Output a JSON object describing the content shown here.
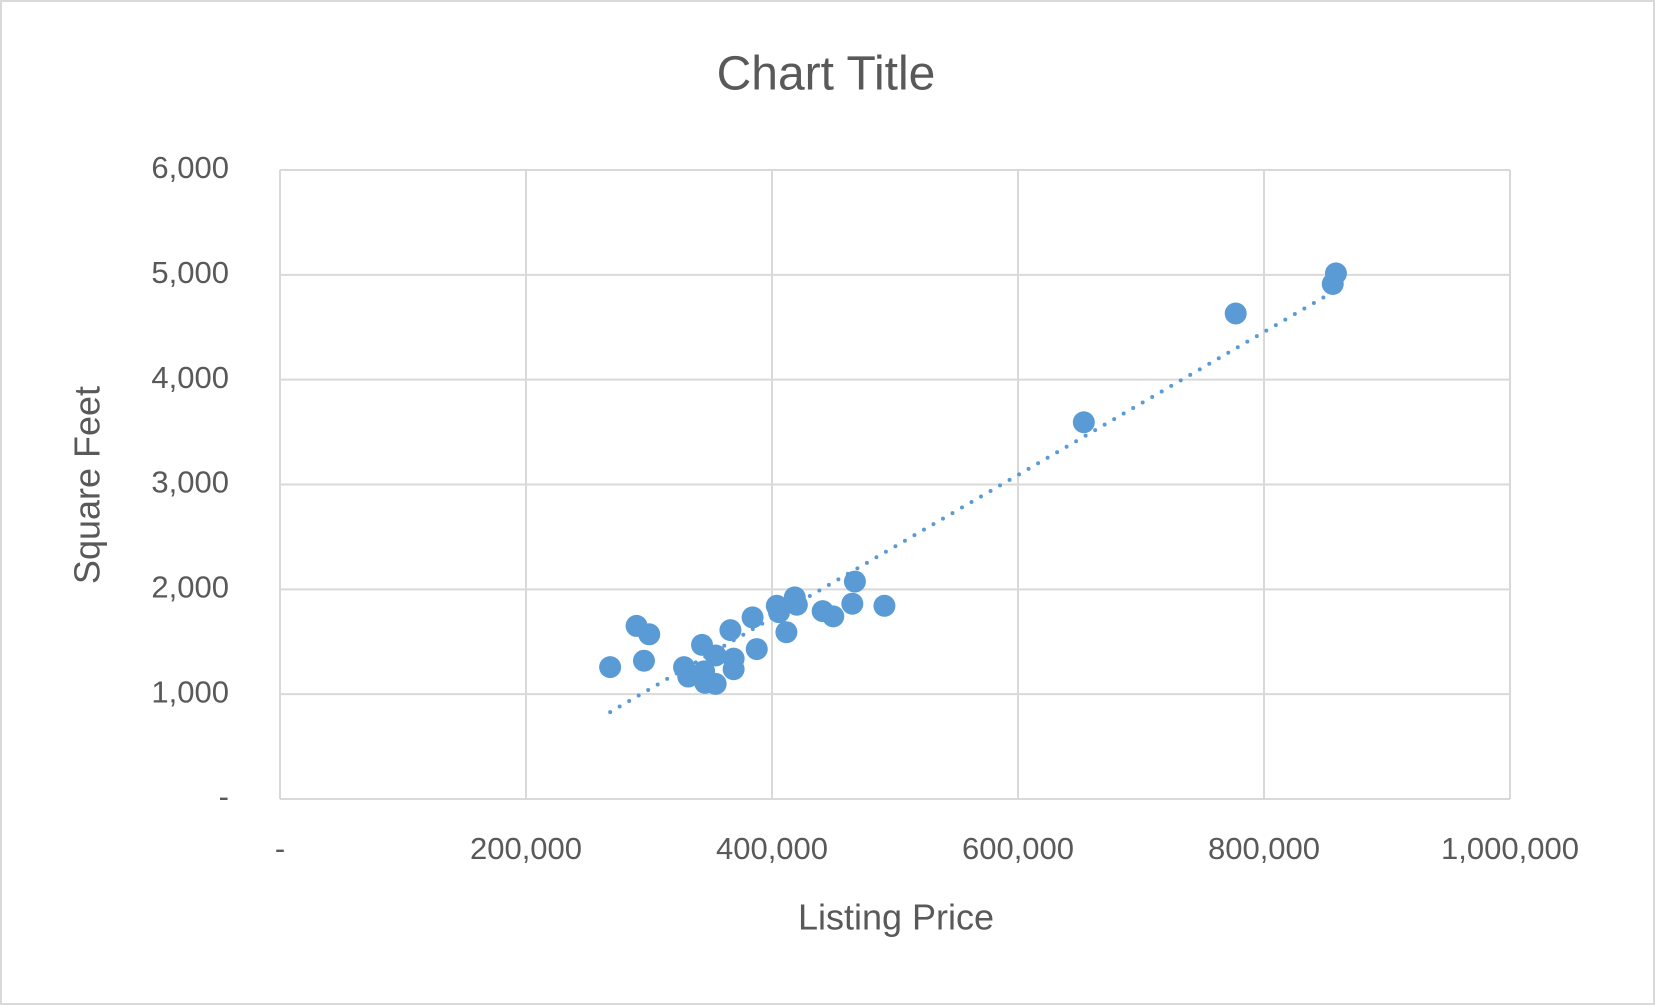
{
  "chart_data": {
    "type": "scatter",
    "title": "Chart Title",
    "x_label": "Listing Price",
    "y_label": "Square Feet",
    "series": [
      {
        "color": "#5b9bd5",
        "x": [
          268400,
          289900,
          300200,
          295900,
          328500,
          331900,
          343100,
          344800,
          345600,
          354200,
          354200,
          366200,
          368800,
          368800,
          384200,
          387600,
          403900,
          405700,
          411700,
          418500,
          420200,
          441200,
          449800,
          465300,
          467400,
          491400,
          653500,
          777000,
          855900,
          858500
        ],
        "values": [
          1258,
          1651,
          1571,
          1319,
          1258,
          1168,
          1470,
          1218,
          1108,
          1369,
          1098,
          1611,
          1339,
          1238,
          1732,
          1430,
          1843,
          1782,
          1591,
          1923,
          1853,
          1792,
          1742,
          1863,
          2074,
          1843,
          3594,
          4631,
          4913,
          5014
        ]
      }
    ],
    "trendline": "linear",
    "xlim": [
      0,
      1000000
    ],
    "ylim": [
      0,
      6000
    ],
    "xticks": [
      {
        "value": 0,
        "label": "-"
      },
      {
        "value": 200000,
        "label": "200,000"
      },
      {
        "value": 400000,
        "label": "400,000"
      },
      {
        "value": 600000,
        "label": "600,000"
      },
      {
        "value": 800000,
        "label": "800,000"
      },
      {
        "value": 1000000,
        "label": "1,000,000"
      }
    ],
    "yticks": [
      {
        "value": 0,
        "label": "-"
      },
      {
        "value": 1000,
        "label": "1,000"
      },
      {
        "value": 2000,
        "label": "2,000"
      },
      {
        "value": 3000,
        "label": "3,000"
      },
      {
        "value": 4000,
        "label": "4,000"
      },
      {
        "value": 5000,
        "label": "5,000"
      },
      {
        "value": 6000,
        "label": "6,000"
      }
    ],
    "grid": true
  }
}
